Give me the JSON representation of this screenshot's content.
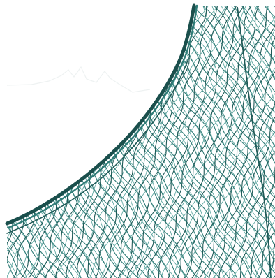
{
  "image": {
    "subject": "fishing-net",
    "background_color": "#ffffff",
    "net_color_dark": "#1f5a57",
    "net_color_mid": "#2f7c77",
    "net_color_light": "#5fa7a1",
    "rope_color": "#1a4f4c"
  }
}
